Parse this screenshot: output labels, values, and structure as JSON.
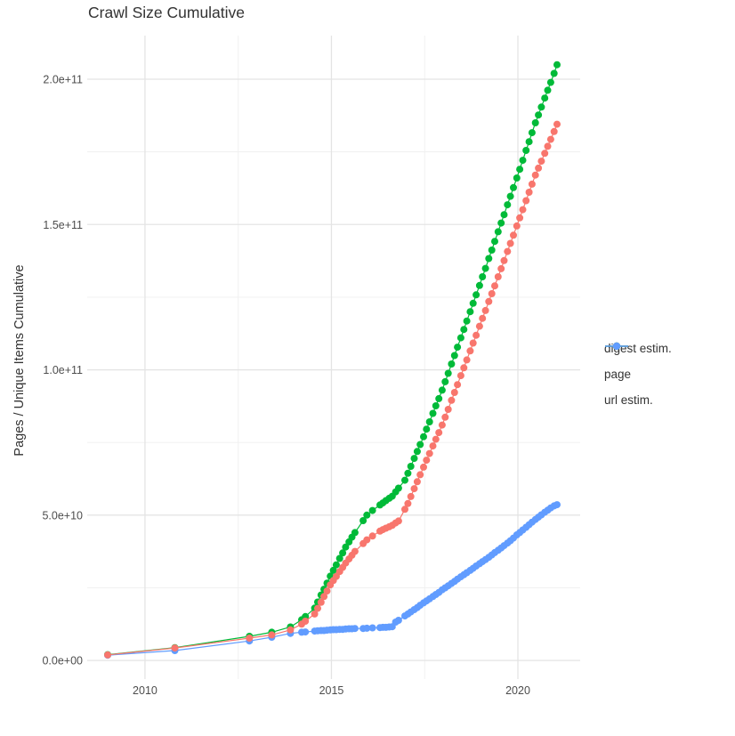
{
  "chart_data": {
    "type": "line",
    "title": "Crawl Size Cumulative",
    "xlabel": "",
    "ylabel": "Pages / Unique Items Cumulative",
    "unit_note": "values_e9 are in units of 1e9 pages / unique items (cumulative)",
    "grid": true,
    "legend_position": "right",
    "xlim_years": [
      2008.45,
      2021.67
    ],
    "ylim_e9": [
      -6.4,
      215.0
    ],
    "x_ticks": [
      {
        "label": "2010",
        "year": 2010
      },
      {
        "label": "2015",
        "year": 2015
      },
      {
        "label": "2020",
        "year": 2020
      }
    ],
    "x_minor_years": [
      2012.5,
      2017.5
    ],
    "y_ticks": [
      {
        "label": "0.0e+00",
        "value_e9": 0
      },
      {
        "label": "5.0e+10",
        "value_e9": 50
      },
      {
        "label": "1.0e+11",
        "value_e9": 100
      },
      {
        "label": "1.5e+11",
        "value_e9": 150
      },
      {
        "label": "2.0e+11",
        "value_e9": 200
      }
    ],
    "y_minor_e9": [
      25,
      75,
      125,
      175
    ],
    "x_years": [
      2009.0,
      2010.8,
      2012.8,
      2013.4,
      2013.9,
      2014.2,
      2014.3,
      2014.55,
      2014.63,
      2014.72,
      2014.8,
      2014.88,
      2014.97,
      2015.05,
      2015.13,
      2015.22,
      2015.3,
      2015.38,
      2015.47,
      2015.55,
      2015.63,
      2015.85,
      2015.95,
      2016.1,
      2016.3,
      2016.38,
      2016.46,
      2016.55,
      2016.63,
      2016.72,
      2016.8,
      2016.97,
      2017.05,
      2017.13,
      2017.22,
      2017.3,
      2017.38,
      2017.47,
      2017.55,
      2017.63,
      2017.72,
      2017.8,
      2017.88,
      2017.97,
      2018.05,
      2018.13,
      2018.22,
      2018.3,
      2018.38,
      2018.47,
      2018.55,
      2018.63,
      2018.72,
      2018.8,
      2018.88,
      2018.97,
      2019.05,
      2019.13,
      2019.22,
      2019.3,
      2019.38,
      2019.47,
      2019.55,
      2019.63,
      2019.72,
      2019.8,
      2019.88,
      2019.97,
      2020.05,
      2020.13,
      2020.22,
      2020.3,
      2020.38,
      2020.47,
      2020.55,
      2020.63,
      2020.72,
      2020.8,
      2020.88,
      2020.97,
      2021.05
    ],
    "series": [
      {
        "name": "digest estim.",
        "color": "#F8766D",
        "values_e9": [
          1.9,
          4.3,
          7.7,
          8.8,
          10.5,
          12.5,
          13.5,
          16.0,
          17.9,
          20.0,
          22.0,
          23.9,
          26.0,
          27.5,
          28.9,
          30.6,
          32.0,
          33.5,
          34.9,
          36.2,
          37.5,
          40.2,
          41.5,
          42.8,
          44.5,
          45.0,
          45.5,
          46.0,
          46.5,
          47.3,
          48.0,
          52.0,
          54.0,
          56.4,
          59.1,
          61.5,
          63.9,
          66.5,
          68.9,
          71.2,
          73.8,
          76.1,
          78.4,
          81.0,
          83.7,
          86.4,
          89.5,
          92.2,
          94.9,
          98.0,
          100.7,
          103.4,
          106.5,
          109.2,
          111.9,
          115.0,
          117.7,
          120.4,
          123.5,
          126.2,
          128.9,
          132.0,
          134.8,
          137.6,
          140.7,
          143.5,
          146.3,
          149.5,
          152.3,
          155.1,
          158.2,
          161.1,
          163.9,
          167.0,
          169.4,
          171.8,
          174.5,
          176.9,
          179.3,
          182.0,
          184.5
        ]
      },
      {
        "name": "page",
        "color": "#00BA38",
        "values_e9": [
          2.0,
          4.4,
          8.3,
          9.7,
          11.5,
          14.0,
          15.1,
          18.0,
          20.1,
          22.5,
          24.5,
          26.6,
          29.0,
          31.0,
          32.9,
          35.1,
          37.0,
          39.0,
          40.8,
          42.4,
          44.0,
          48.1,
          50.0,
          51.6,
          53.5,
          54.2,
          55.0,
          55.8,
          56.5,
          58.0,
          59.3,
          62.0,
          64.4,
          66.8,
          69.5,
          71.9,
          74.3,
          77.0,
          79.6,
          82.1,
          85.0,
          87.6,
          90.1,
          93.0,
          95.9,
          98.8,
          102.0,
          104.9,
          107.8,
          111.0,
          113.9,
          116.8,
          120.0,
          122.9,
          125.8,
          129.0,
          132.0,
          134.9,
          138.3,
          141.2,
          144.2,
          147.5,
          150.5,
          153.4,
          156.8,
          159.7,
          162.7,
          166.0,
          169.0,
          172.1,
          175.5,
          178.5,
          181.6,
          185.0,
          187.7,
          190.4,
          193.5,
          196.2,
          198.9,
          202.0,
          205.0
        ]
      },
      {
        "name": "url estim.",
        "color": "#619CFF",
        "values_e9": [
          1.8,
          3.4,
          6.7,
          8.0,
          9.3,
          9.7,
          9.8,
          10.1,
          10.2,
          10.3,
          10.3,
          10.4,
          10.5,
          10.6,
          10.6,
          10.7,
          10.7,
          10.8,
          10.9,
          10.9,
          11.0,
          11.0,
          11.1,
          11.2,
          11.3,
          11.4,
          11.4,
          11.5,
          11.6,
          13.2,
          13.8,
          15.3,
          16.0,
          16.7,
          17.5,
          18.2,
          19.0,
          19.8,
          20.5,
          21.2,
          22.0,
          22.7,
          23.4,
          24.3,
          25.0,
          25.7,
          26.5,
          27.2,
          28.0,
          28.8,
          29.5,
          30.2,
          31.0,
          31.7,
          32.5,
          33.3,
          34.0,
          34.7,
          35.5,
          36.3,
          37.1,
          37.9,
          38.7,
          39.5,
          40.4,
          41.2,
          42.1,
          43.2,
          44.0,
          44.9,
          45.8,
          46.7,
          47.6,
          48.5,
          49.3,
          50.1,
          51.0,
          51.7,
          52.5,
          53.2,
          53.6
        ]
      }
    ],
    "style": {
      "grid_major_color": "#E4E4E4",
      "grid_minor_color": "#EFEFEF",
      "tick_text_color": "#4D4D4D",
      "title_color": "#333333",
      "point_radius": 4,
      "line_width": 1.2
    }
  }
}
